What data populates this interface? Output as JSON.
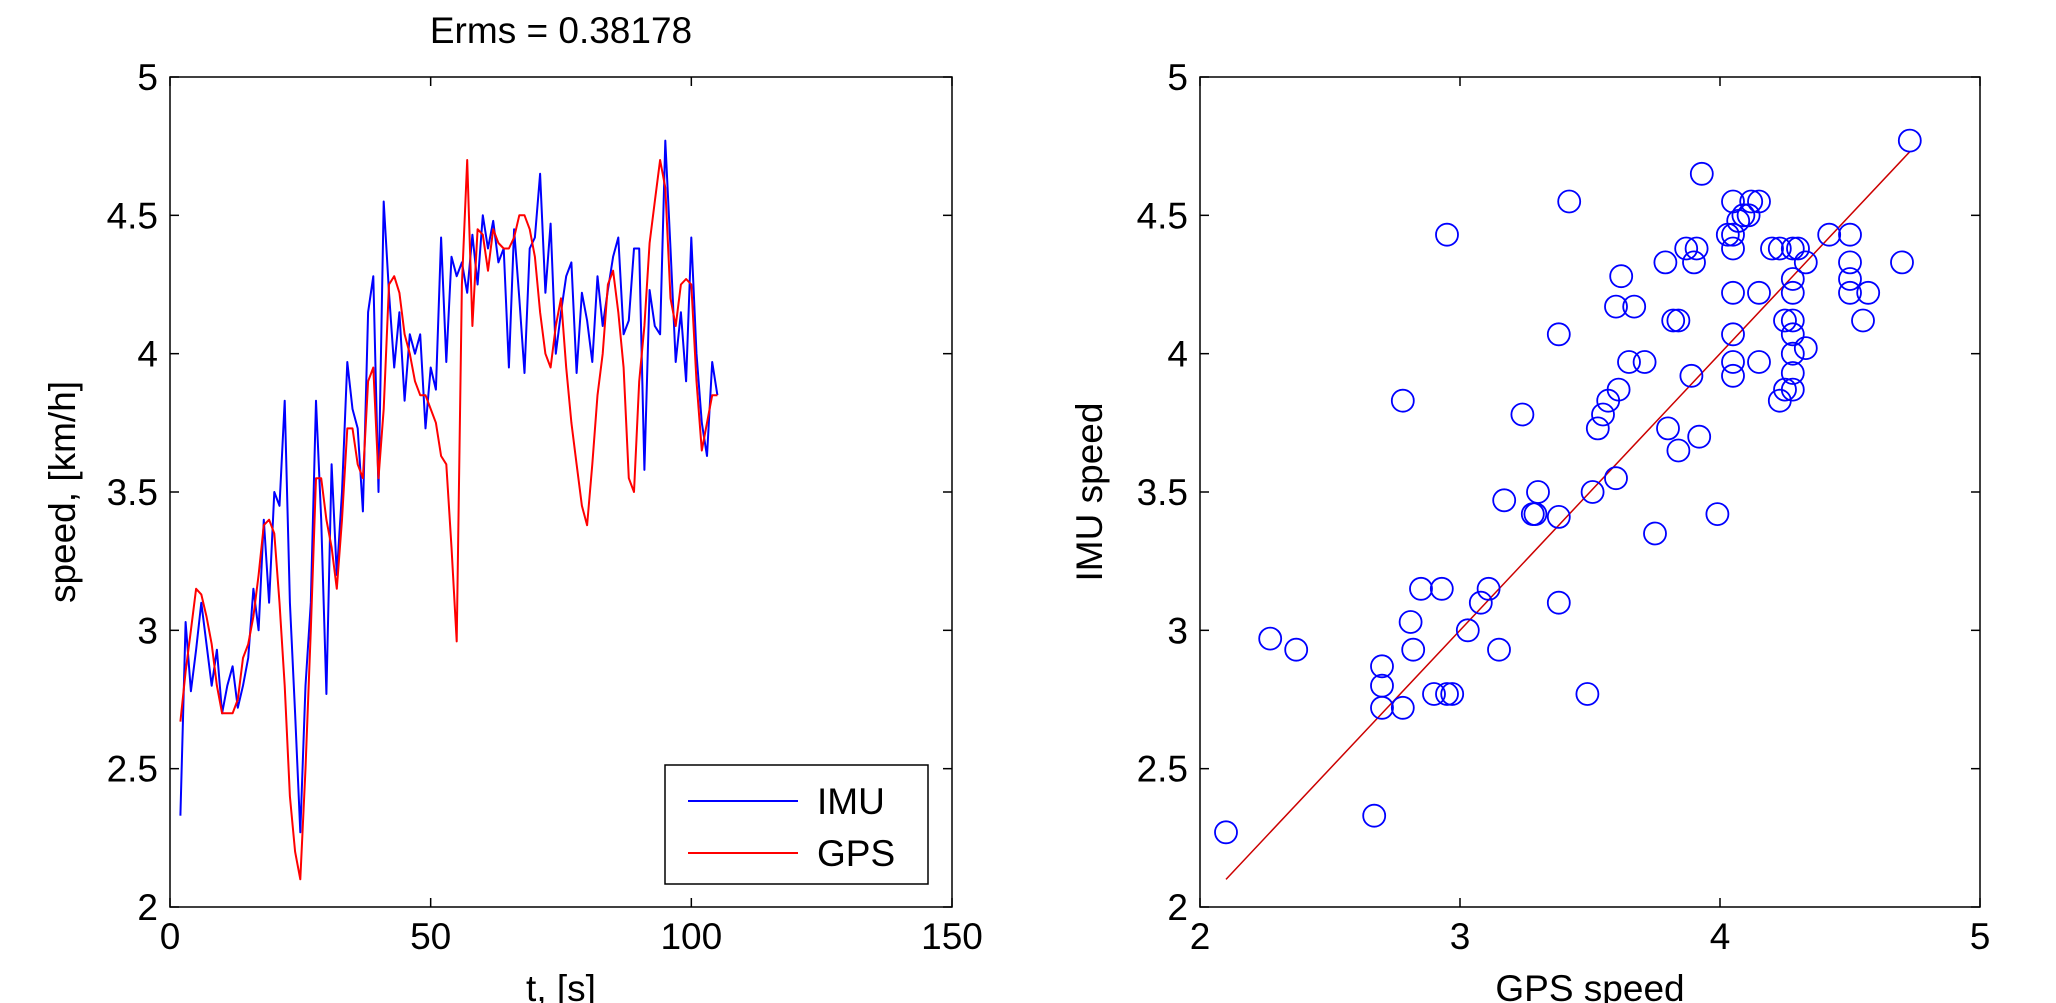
{
  "chart_data": [
    {
      "type": "line",
      "title": "Erms = 0.38178",
      "xlabel": "t, [s]",
      "ylabel": "speed, [km/h]",
      "xlim": [
        0,
        150
      ],
      "ylim": [
        2,
        5
      ],
      "xticks": [
        "0",
        "50",
        "100",
        "150"
      ],
      "yticks": [
        "2",
        "2.5",
        "3",
        "3.5",
        "4",
        "4.5",
        "5"
      ],
      "grid": false,
      "legend": {
        "placement": "bottom-right",
        "entries": [
          "IMU",
          "GPS"
        ]
      },
      "colors": {
        "IMU": "#0000ff",
        "GPS": "#ff0000"
      },
      "x": [
        2,
        3,
        4,
        5,
        6,
        7,
        8,
        9,
        10,
        11,
        12,
        13,
        14,
        15,
        16,
        17,
        18,
        19,
        20,
        21,
        22,
        23,
        24,
        25,
        26,
        27,
        28,
        29,
        30,
        31,
        32,
        33,
        34,
        35,
        36,
        37,
        38,
        39,
        40,
        41,
        42,
        43,
        44,
        45,
        46,
        47,
        48,
        49,
        50,
        51,
        52,
        53,
        54,
        55,
        56,
        57,
        58,
        59,
        60,
        61,
        62,
        63,
        64,
        65,
        66,
        67,
        68,
        69,
        70,
        71,
        72,
        73,
        74,
        75,
        76,
        77,
        78,
        79,
        80,
        81,
        82,
        83,
        84,
        85,
        86,
        87,
        88,
        89,
        90,
        91,
        92,
        93,
        94,
        95,
        96,
        97,
        98,
        99,
        100,
        101,
        102,
        103,
        104,
        105
      ],
      "series": [
        {
          "name": "IMU",
          "values": [
            2.33,
            3.03,
            2.78,
            2.93,
            3.1,
            2.95,
            2.8,
            2.93,
            2.7,
            2.8,
            2.87,
            2.72,
            2.8,
            2.9,
            3.15,
            3.0,
            3.4,
            3.1,
            3.5,
            3.45,
            3.83,
            3.1,
            2.7,
            2.27,
            2.8,
            3.1,
            3.83,
            3.4,
            2.77,
            3.6,
            3.2,
            3.5,
            3.97,
            3.8,
            3.73,
            3.43,
            4.15,
            4.28,
            3.5,
            4.55,
            4.22,
            3.95,
            4.15,
            3.83,
            4.07,
            4.0,
            4.07,
            3.73,
            3.95,
            3.87,
            4.42,
            3.97,
            4.35,
            4.28,
            4.33,
            4.22,
            4.43,
            4.25,
            4.5,
            4.38,
            4.48,
            4.33,
            4.38,
            3.95,
            4.45,
            4.2,
            3.93,
            4.38,
            4.42,
            4.65,
            4.22,
            4.47,
            4.0,
            4.15,
            4.28,
            4.33,
            3.93,
            4.22,
            4.12,
            3.97,
            4.28,
            4.1,
            4.23,
            4.35,
            4.42,
            4.07,
            4.12,
            4.38,
            4.38,
            3.58,
            4.23,
            4.1,
            4.07,
            4.77,
            4.38,
            3.97,
            4.15,
            3.9,
            4.42,
            4.0,
            3.75,
            3.63,
            3.97,
            3.85
          ]
        },
        {
          "name": "GPS",
          "values": [
            2.67,
            2.85,
            3.0,
            3.15,
            3.13,
            3.05,
            2.95,
            2.8,
            2.7,
            2.7,
            2.7,
            2.75,
            2.9,
            2.95,
            3.05,
            3.2,
            3.38,
            3.4,
            3.35,
            3.1,
            2.8,
            2.4,
            2.2,
            2.1,
            2.5,
            3.0,
            3.55,
            3.55,
            3.4,
            3.3,
            3.15,
            3.4,
            3.73,
            3.73,
            3.6,
            3.55,
            3.9,
            3.95,
            3.55,
            3.8,
            4.25,
            4.28,
            4.22,
            4.07,
            4.0,
            3.9,
            3.85,
            3.85,
            3.8,
            3.75,
            3.63,
            3.6,
            3.3,
            2.96,
            4.25,
            4.7,
            4.1,
            4.45,
            4.43,
            4.3,
            4.45,
            4.4,
            4.38,
            4.38,
            4.42,
            4.5,
            4.5,
            4.45,
            4.35,
            4.15,
            4.0,
            3.95,
            4.1,
            4.2,
            3.95,
            3.75,
            3.6,
            3.45,
            3.38,
            3.6,
            3.85,
            4.0,
            4.25,
            4.3,
            4.15,
            3.95,
            3.55,
            3.5,
            3.9,
            4.1,
            4.4,
            4.55,
            4.7,
            4.6,
            4.2,
            4.1,
            4.25,
            4.27,
            4.25,
            3.9,
            3.65,
            3.75,
            3.85,
            3.85
          ]
        }
      ]
    },
    {
      "type": "scatter",
      "title": "",
      "xlabel": "GPS speed",
      "ylabel": "IMU speed",
      "xlim": [
        2,
        5
      ],
      "ylim": [
        2,
        5
      ],
      "xticks": [
        "2",
        "3",
        "4",
        "5"
      ],
      "yticks": [
        "2",
        "2.5",
        "3",
        "3.5",
        "4",
        "4.5",
        "5"
      ],
      "grid": false,
      "colors": {
        "points": "#0000ff",
        "fit": "#cc0000"
      },
      "points": [
        [
          2.1,
          2.27
        ],
        [
          2.27,
          2.97
        ],
        [
          2.37,
          2.93
        ],
        [
          2.67,
          2.33
        ],
        [
          2.7,
          2.87
        ],
        [
          2.7,
          2.8
        ],
        [
          2.7,
          2.72
        ],
        [
          2.78,
          2.72
        ],
        [
          2.78,
          3.83
        ],
        [
          2.81,
          3.03
        ],
        [
          2.82,
          2.93
        ],
        [
          2.85,
          3.15
        ],
        [
          2.9,
          2.77
        ],
        [
          2.93,
          3.15
        ],
        [
          2.95,
          2.77
        ],
        [
          2.97,
          2.77
        ],
        [
          2.95,
          4.43
        ],
        [
          3.03,
          3.0
        ],
        [
          3.08,
          3.1
        ],
        [
          3.11,
          3.15
        ],
        [
          3.15,
          2.93
        ],
        [
          3.17,
          3.47
        ],
        [
          3.24,
          3.78
        ],
        [
          3.28,
          3.42
        ],
        [
          3.3,
          3.5
        ],
        [
          3.29,
          3.42
        ],
        [
          3.38,
          3.41
        ],
        [
          3.38,
          3.1
        ],
        [
          3.38,
          4.07
        ],
        [
          3.42,
          4.55
        ],
        [
          3.49,
          2.77
        ],
        [
          3.51,
          3.5
        ],
        [
          3.53,
          3.73
        ],
        [
          3.55,
          3.78
        ],
        [
          3.57,
          3.83
        ],
        [
          3.6,
          3.55
        ],
        [
          3.61,
          3.87
        ],
        [
          3.6,
          4.17
        ],
        [
          3.62,
          4.28
        ],
        [
          3.65,
          3.97
        ],
        [
          3.67,
          4.17
        ],
        [
          3.71,
          3.97
        ],
        [
          3.75,
          3.35
        ],
        [
          3.79,
          4.33
        ],
        [
          3.8,
          3.73
        ],
        [
          3.82,
          4.12
        ],
        [
          3.84,
          4.12
        ],
        [
          3.84,
          3.65
        ],
        [
          3.87,
          4.38
        ],
        [
          3.89,
          3.92
        ],
        [
          3.9,
          4.33
        ],
        [
          3.91,
          4.38
        ],
        [
          3.92,
          3.7
        ],
        [
          3.93,
          4.65
        ],
        [
          3.99,
          3.42
        ],
        [
          4.03,
          4.43
        ],
        [
          4.05,
          4.55
        ],
        [
          4.05,
          4.43
        ],
        [
          4.05,
          4.38
        ],
        [
          4.05,
          4.22
        ],
        [
          4.05,
          4.07
        ],
        [
          4.05,
          3.97
        ],
        [
          4.05,
          3.92
        ],
        [
          4.07,
          4.48
        ],
        [
          4.09,
          4.5
        ],
        [
          4.11,
          4.5
        ],
        [
          4.12,
          4.55
        ],
        [
          4.15,
          4.55
        ],
        [
          4.15,
          4.22
        ],
        [
          4.15,
          3.97
        ],
        [
          4.2,
          4.38
        ],
        [
          4.23,
          4.38
        ],
        [
          4.23,
          3.83
        ],
        [
          4.25,
          4.12
        ],
        [
          4.25,
          3.87
        ],
        [
          4.28,
          4.38
        ],
        [
          4.28,
          4.27
        ],
        [
          4.28,
          4.22
        ],
        [
          4.28,
          4.12
        ],
        [
          4.28,
          4.07
        ],
        [
          4.28,
          4.0
        ],
        [
          4.28,
          3.93
        ],
        [
          4.28,
          3.87
        ],
        [
          4.3,
          4.38
        ],
        [
          4.33,
          4.33
        ],
        [
          4.33,
          4.02
        ],
        [
          4.42,
          4.43
        ],
        [
          4.5,
          4.43
        ],
        [
          4.5,
          4.33
        ],
        [
          4.5,
          4.27
        ],
        [
          4.5,
          4.22
        ],
        [
          4.55,
          4.12
        ],
        [
          4.57,
          4.22
        ],
        [
          4.7,
          4.33
        ],
        [
          4.73,
          4.77
        ]
      ],
      "fit_line": {
        "x": [
          2.1,
          4.73
        ],
        "y": [
          2.1,
          4.73
        ]
      }
    }
  ]
}
